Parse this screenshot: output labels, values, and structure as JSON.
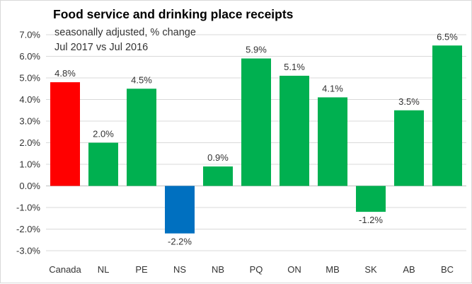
{
  "chart_data": {
    "type": "bar",
    "title": "Food service and drinking place receipts",
    "subtitle_lines": [
      "seasonally adjusted,  % change",
      "Jul 2017 vs Jul 2016"
    ],
    "categories": [
      "Canada",
      "NL",
      "PE",
      "NS",
      "NB",
      "PQ",
      "ON",
      "MB",
      "SK",
      "AB",
      "BC"
    ],
    "values": [
      4.8,
      2.0,
      4.5,
      -2.2,
      0.9,
      5.9,
      5.1,
      4.1,
      -1.2,
      3.5,
      6.5
    ],
    "data_labels": [
      "4.8%",
      "2.0%",
      "4.5%",
      "-2.2%",
      "0.9%",
      "5.9%",
      "5.1%",
      "4.1%",
      "-1.2%",
      "3.5%",
      "6.5%"
    ],
    "colors": [
      "#ff0000",
      "#00b050",
      "#00b050",
      "#0070c0",
      "#00b050",
      "#00b050",
      "#00b050",
      "#00b050",
      "#00b050",
      "#00b050",
      "#00b050"
    ],
    "ylim": [
      -3,
      7
    ],
    "yticks": [
      7,
      6,
      5,
      4,
      3,
      2,
      1,
      0,
      -1,
      -2,
      -3
    ],
    "ytick_labels": [
      "7.0%",
      "6.0%",
      "5.0%",
      "4.0%",
      "3.0%",
      "2.0%",
      "1.0%",
      "0.0%",
      "-1.0%",
      "-2.0%",
      "-3.0%"
    ],
    "grid": true,
    "xlabel": "",
    "ylabel": ""
  }
}
